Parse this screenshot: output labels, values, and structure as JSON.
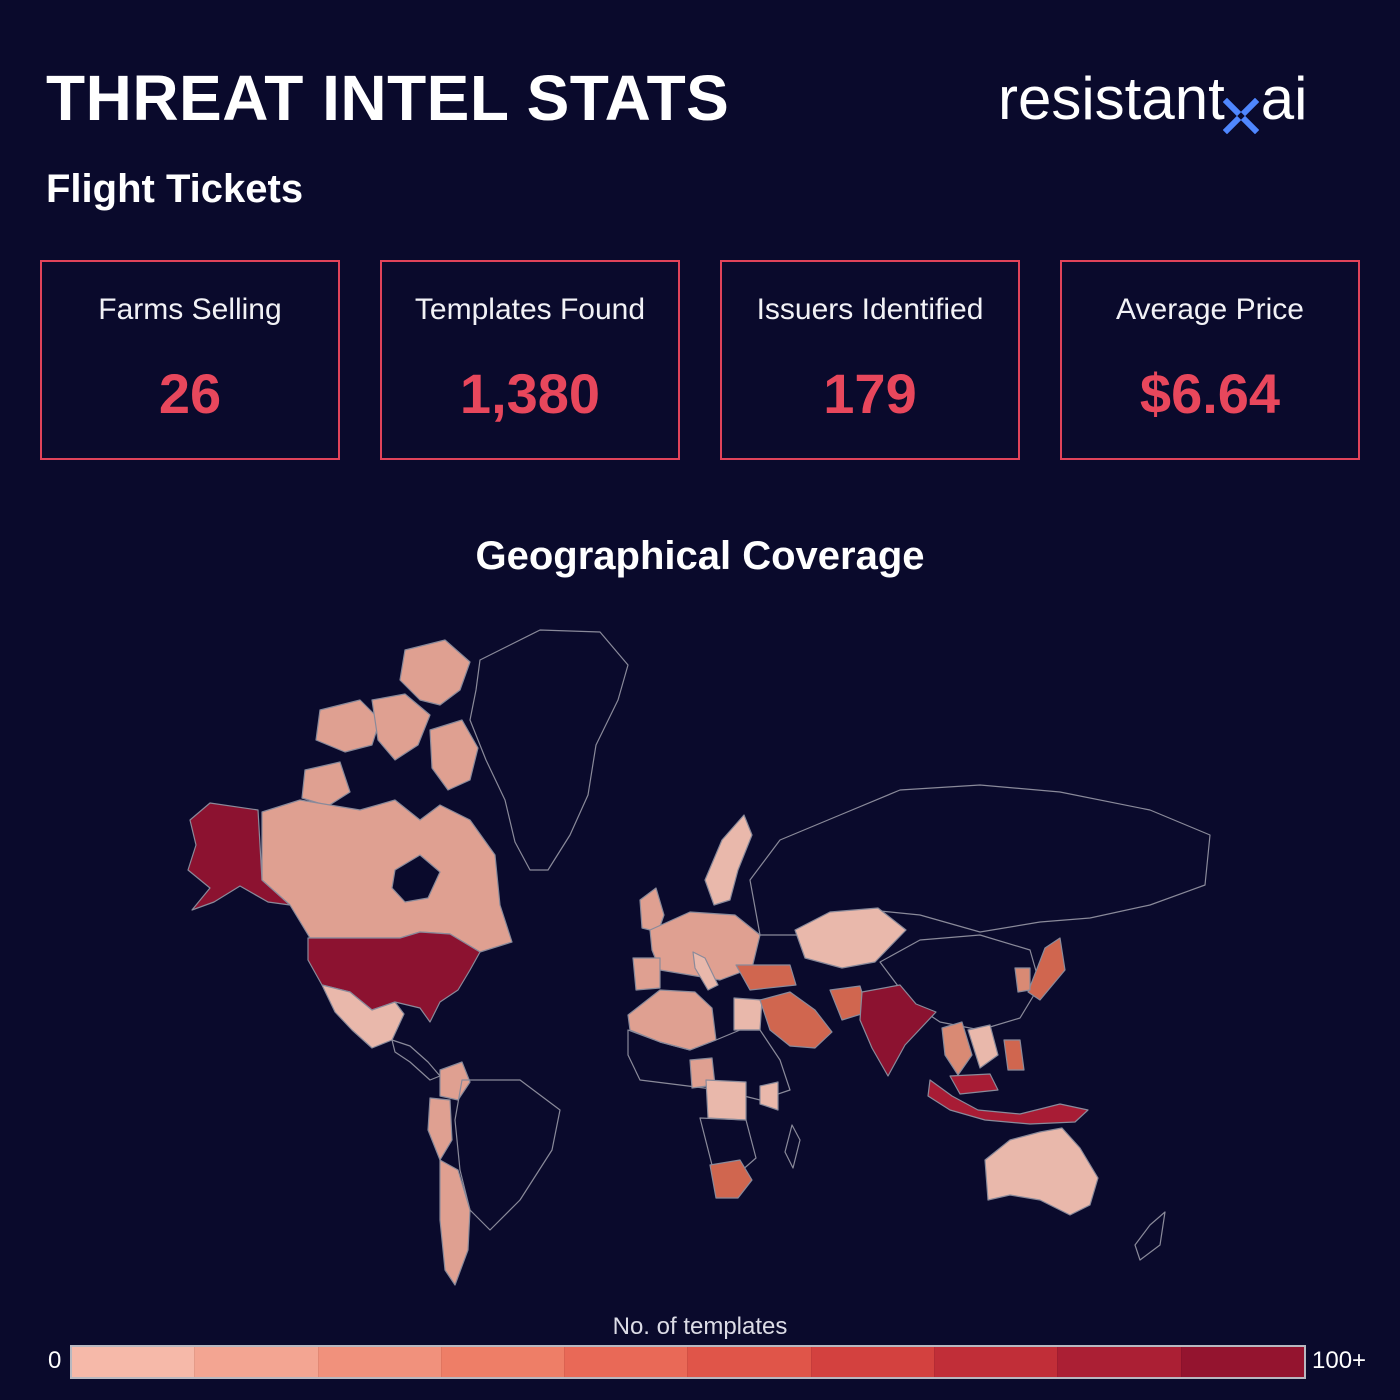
{
  "header": {
    "title": "THREAT INTEL STATS",
    "logo_text_left": "resistant",
    "logo_text_right": "ai",
    "subtitle": "Flight Tickets"
  },
  "stats": [
    {
      "label": "Farms Selling",
      "value": "26"
    },
    {
      "label": "Templates Found",
      "value": "1,380"
    },
    {
      "label": "Issuers Identified",
      "value": "179"
    },
    {
      "label": "Average Price",
      "value": "$6.64"
    }
  ],
  "map": {
    "title": "Geographical Coverage",
    "legend_title": "No. of templates",
    "legend_min": "0",
    "legend_max": "100+",
    "scale_colors": [
      "#f6b9a9",
      "#f3a592",
      "#f1917c",
      "#ee7e67",
      "#e96957",
      "#e05549",
      "#d3413f",
      "#c12e38",
      "#ab1f34",
      "#94142f"
    ],
    "country_colors": {
      "high": "#8c1230",
      "upper": "#a81c35",
      "mid": "#d0664f",
      "midlow": "#d98a74",
      "low": "#dfa091",
      "pale": "#e9b8ab"
    }
  },
  "colors": {
    "background": "#0a0a2c",
    "accent": "#e8475c",
    "logo_mark": "#4f87ff"
  }
}
